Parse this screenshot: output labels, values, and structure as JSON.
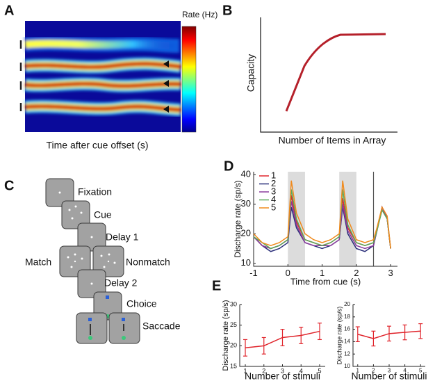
{
  "panel_labels": [
    "A",
    "B",
    "C",
    "D",
    "E"
  ],
  "heatmap": {
    "colorbar_label": "Rate (Hz)",
    "xlabel": "Time after cue offset (s)"
  },
  "schematic": {
    "ylabel": "Capacity",
    "xlabel": "Number of Items in Array"
  },
  "task": {
    "steps": [
      "Fixation",
      "Cue",
      "Delay 1",
      "Match",
      "Nonmatch",
      "Delay 2",
      "Choice",
      "Saccade"
    ]
  },
  "chart_data": [
    {
      "type": "line",
      "xlabel": "Time from cue (s)",
      "ylabel": "Discharge rate (sp/s)",
      "x": [
        -1,
        -0.75,
        -0.5,
        -0.25,
        0,
        0.1,
        0.25,
        0.5,
        0.75,
        1,
        1.25,
        1.5,
        1.6,
        1.75,
        2,
        2.25,
        2.5,
        2.6,
        2.75,
        2.9,
        3
      ],
      "xlim": [
        -1,
        3.2
      ],
      "ylim": [
        9,
        41
      ],
      "xticks": [
        -1,
        0,
        1,
        2,
        3
      ],
      "yticks": [
        10,
        20,
        30,
        40
      ],
      "shaded": [
        [
          0,
          0.5
        ],
        [
          1.5,
          2
        ]
      ],
      "vline": 2.5,
      "legend": "upper left",
      "series": [
        {
          "name": "1",
          "color": "#e0242b",
          "values": [
            19,
            16,
            15,
            16,
            18,
            33,
            24,
            18,
            17,
            16,
            17,
            19,
            32,
            22,
            17,
            16,
            17,
            21,
            29,
            25,
            15
          ]
        },
        {
          "name": "2",
          "color": "#2b2f7a",
          "values": [
            19,
            16,
            14,
            15,
            17,
            29,
            22,
            17,
            16,
            15,
            16,
            18,
            29,
            20,
            15,
            14,
            16,
            21,
            29,
            25,
            15
          ]
        },
        {
          "name": "3",
          "color": "#8a3c9c",
          "values": [
            19,
            16,
            15,
            16,
            18,
            31,
            23,
            17,
            16,
            16,
            16,
            18,
            30,
            21,
            16,
            15,
            16,
            21,
            29,
            25,
            15
          ]
        },
        {
          "name": "4",
          "color": "#5aa85a",
          "values": [
            19,
            17,
            15,
            16,
            18,
            35,
            25,
            18,
            17,
            16,
            17,
            19,
            35,
            23,
            17,
            16,
            17,
            21,
            28,
            25,
            15
          ]
        },
        {
          "name": "5",
          "color": "#f08a1c",
          "values": [
            20,
            17,
            16,
            17,
            19,
            38,
            27,
            20,
            18,
            17,
            18,
            20,
            38,
            25,
            18,
            17,
            18,
            22,
            29,
            26,
            15
          ]
        }
      ]
    },
    {
      "type": "line",
      "xlabel": "Number of stimuli",
      "ylabel": "Discharge rate (sp/s)",
      "x": [
        1,
        2,
        3,
        4,
        5
      ],
      "xlim": [
        0.7,
        5.3
      ],
      "ylim": [
        15,
        30
      ],
      "xticks": [
        1,
        2,
        3,
        4,
        5
      ],
      "yticks": [
        15,
        20,
        25,
        30
      ],
      "series": [
        {
          "color": "#e0242b",
          "values": [
            19.5,
            20,
            22,
            22.5,
            23.5
          ],
          "errors": [
            2,
            2,
            2,
            2,
            2
          ]
        }
      ]
    },
    {
      "type": "line",
      "xlabel": "Number of stimuli",
      "ylabel": "Discharge rate (sp/s)",
      "x": [
        1,
        2,
        3,
        4,
        5
      ],
      "xlim": [
        0.7,
        5.3
      ],
      "ylim": [
        10,
        20
      ],
      "xticks": [
        1,
        2,
        3,
        4,
        5
      ],
      "yticks": [
        10,
        12,
        14,
        16,
        18,
        20
      ],
      "series": [
        {
          "color": "#e0242b",
          "values": [
            15.2,
            14.5,
            15.3,
            15.5,
            15.7
          ],
          "errors": [
            1.2,
            1.2,
            1.2,
            1.2,
            1.2
          ]
        }
      ]
    }
  ]
}
